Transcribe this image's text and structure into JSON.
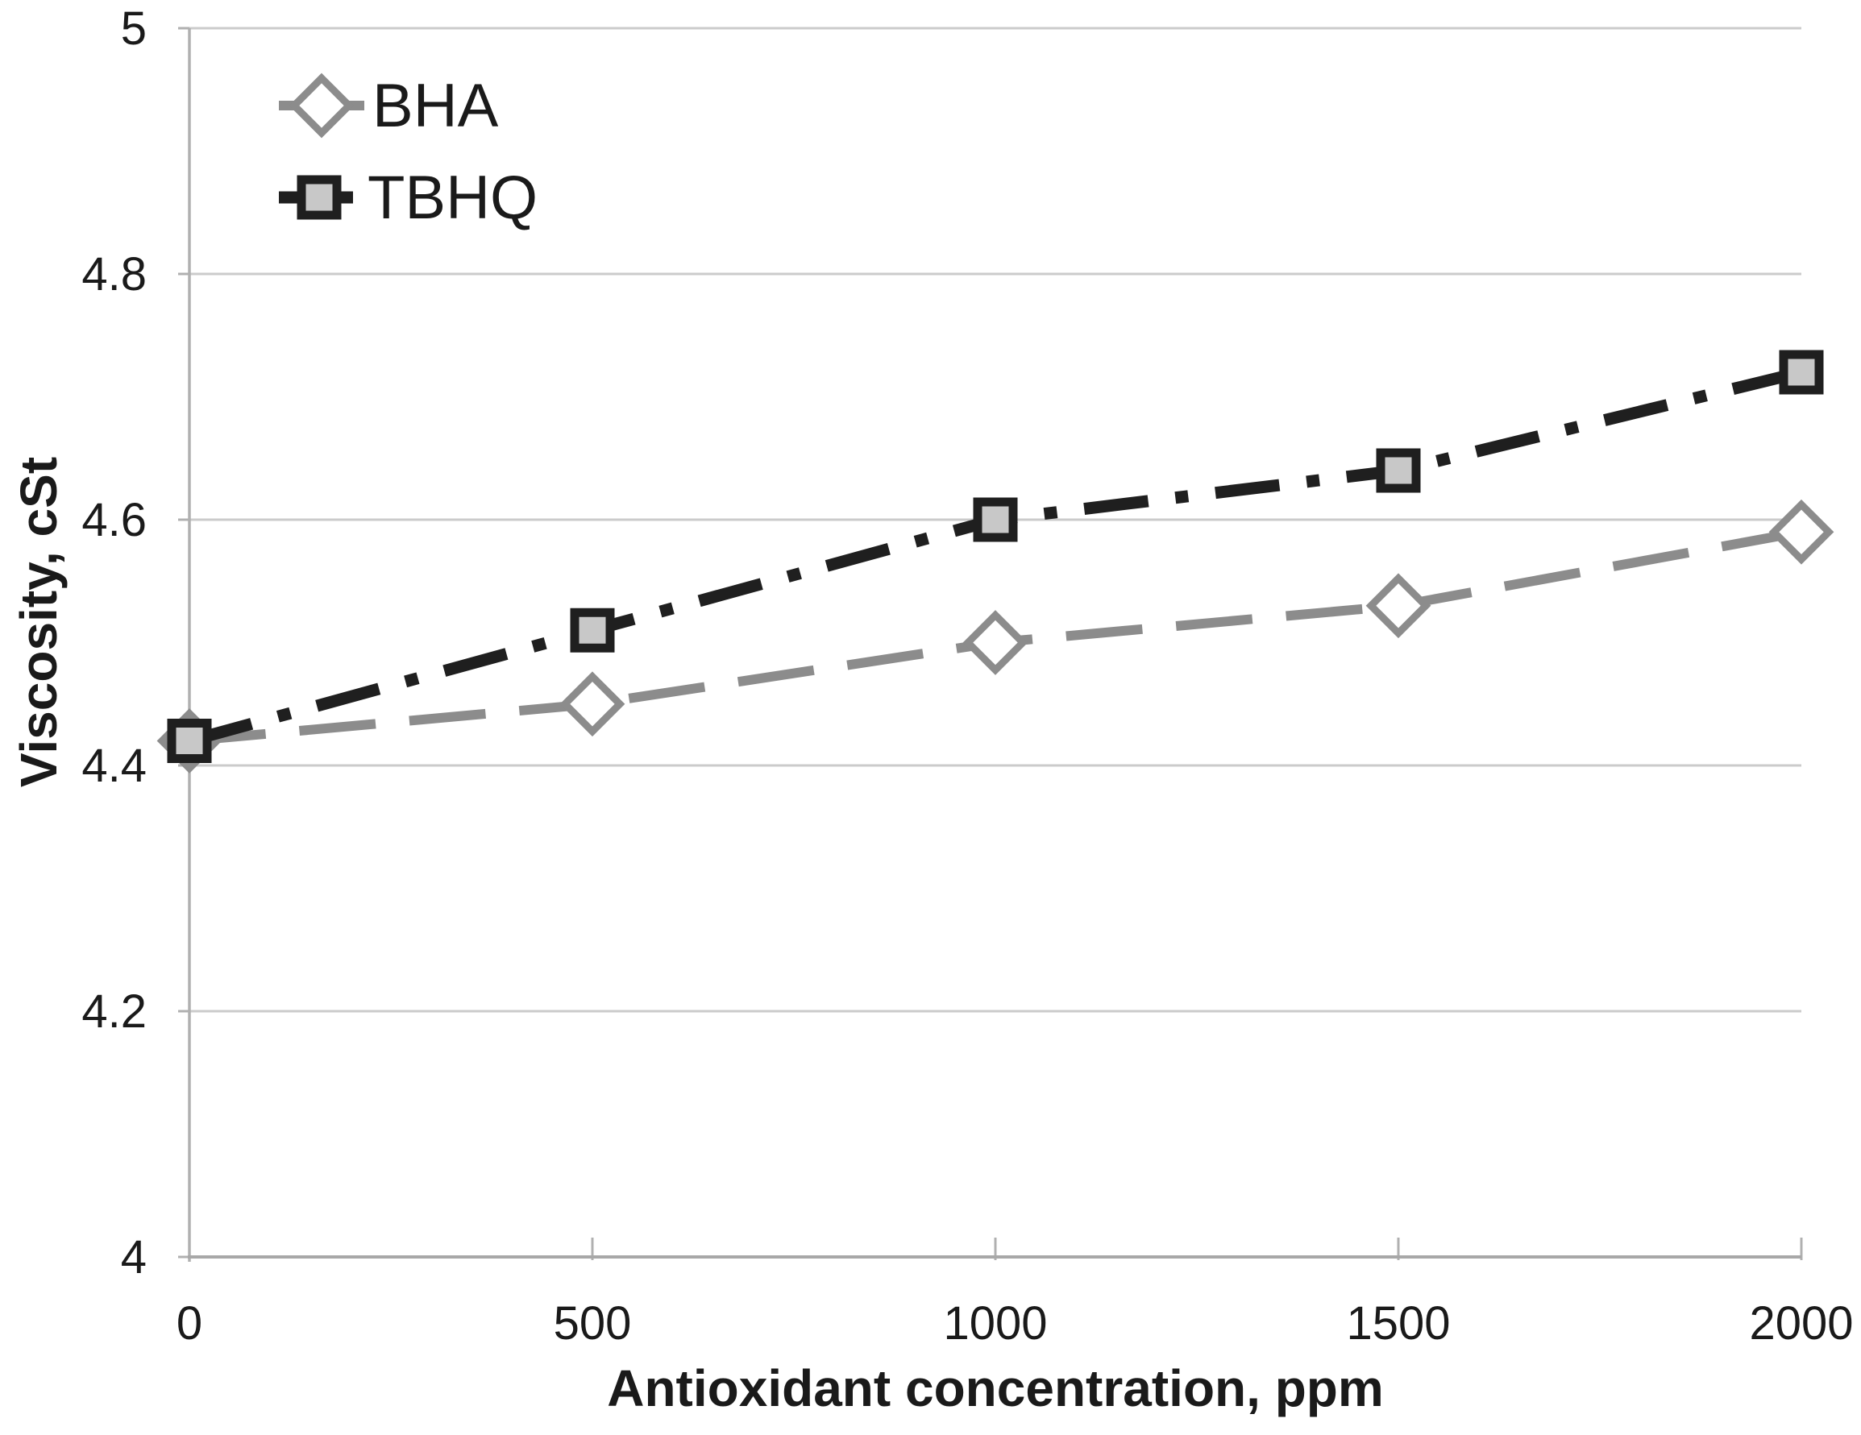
{
  "chart_data": {
    "type": "line",
    "title": "",
    "xlabel": "Antioxidant concentration, ppm",
    "ylabel": "Viscosity, cSt",
    "xlim": [
      0,
      2000
    ],
    "ylim": [
      4,
      5
    ],
    "grid": "horizontal",
    "legend_position": "top-left-inside",
    "x": [
      0,
      500,
      1000,
      1500,
      2000
    ],
    "x_tick_values": [
      0,
      500,
      1000,
      1500,
      2000
    ],
    "x_tick_labels": [
      "0",
      "500",
      "1000",
      "1500",
      "2000"
    ],
    "y_tick_values": [
      4,
      4.2,
      4.4,
      4.6,
      4.8,
      5
    ],
    "y_tick_labels": [
      "4",
      "4.2",
      "4.4",
      "4.6",
      "4.8",
      "5"
    ],
    "series": [
      {
        "name": "BHA",
        "values": [
          4.42,
          4.45,
          4.5,
          4.53,
          4.59
        ],
        "color": "#8c8c8c",
        "line_style": "dashed",
        "marker": "diamond",
        "marker_fill": "#ffffff"
      },
      {
        "name": "TBHQ",
        "values": [
          4.42,
          4.51,
          4.6,
          4.64,
          4.72
        ],
        "color": "#1f1f1f",
        "line_style": "dash-dot",
        "marker": "square",
        "marker_fill": "#c8c8c8"
      }
    ]
  },
  "colors": {
    "background": "#ffffff",
    "grid": "#cbcbcb",
    "axis": "#a8a8a8",
    "tick": "#b0b0b0",
    "text": "#1a1a1a"
  }
}
